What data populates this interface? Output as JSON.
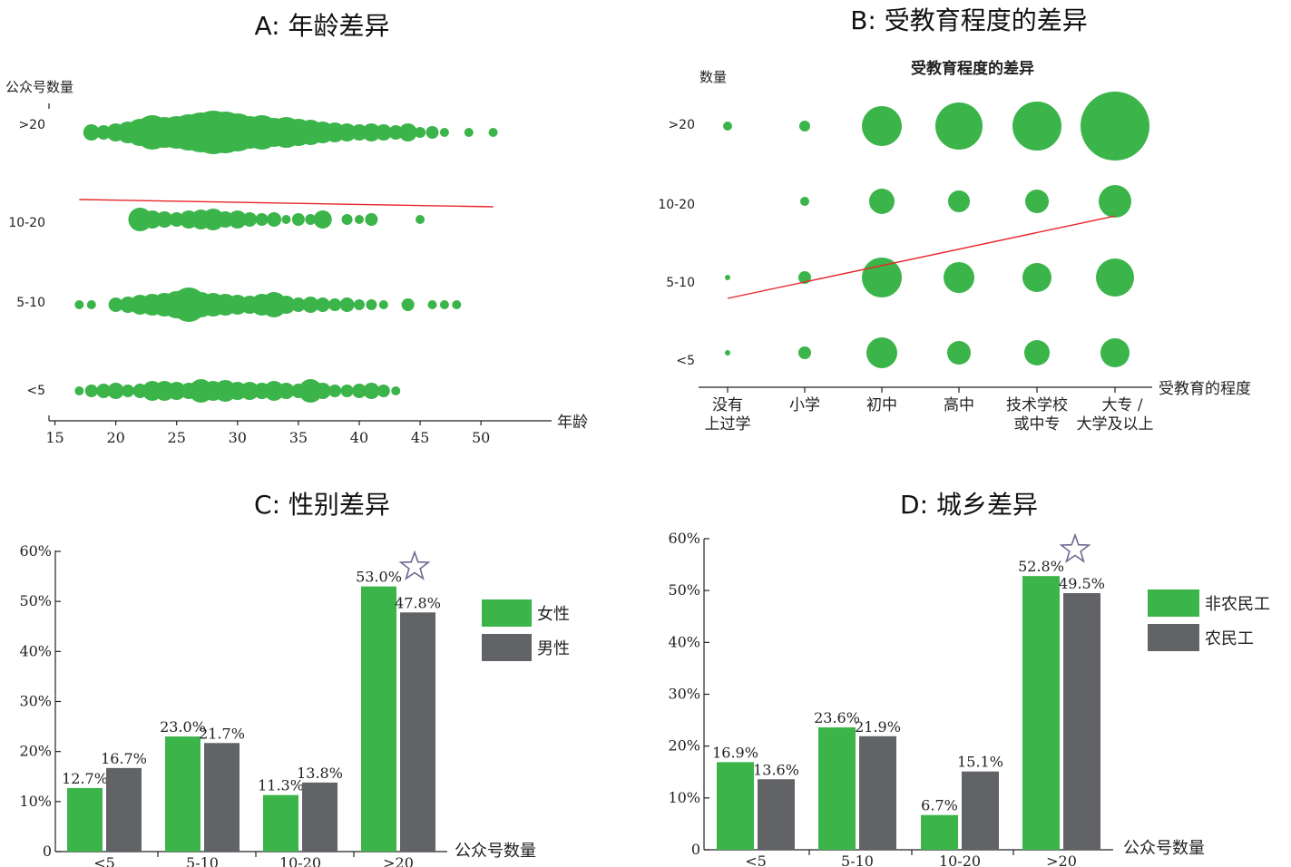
{
  "colors": {
    "green": "#3bb44a",
    "gray": "#626366",
    "trend": "#e8262b",
    "star": "#6a6a90"
  },
  "chart_data": [
    {
      "id": "A",
      "type": "scatter",
      "title": "A: 年龄差异",
      "ylabel": "公众号数量",
      "xlabel": "年龄",
      "xlim": [
        12.3,
        52
      ],
      "xticks": [
        15,
        20,
        25,
        30,
        35,
        40,
        45,
        50
      ],
      "categories": [
        ">20",
        "10-20",
        "5-10",
        "<5"
      ],
      "trend": {
        "from": [
          17,
          "10-20",
          -11
        ],
        "to": [
          51,
          "10-20",
          14
        ]
      },
      "rows": [
        {
          "category": ">20",
          "points": [
            [
              18,
              9
            ],
            [
              19,
              8
            ],
            [
              20,
              10
            ],
            [
              21,
              12
            ],
            [
              22,
              15
            ],
            [
              23,
              19
            ],
            [
              24,
              17
            ],
            [
              25,
              18
            ],
            [
              26,
              20
            ],
            [
              27,
              22
            ],
            [
              28,
              24
            ],
            [
              29,
              23
            ],
            [
              30,
              21
            ],
            [
              31,
              18
            ],
            [
              32,
              19
            ],
            [
              33,
              16
            ],
            [
              34,
              17
            ],
            [
              35,
              15
            ],
            [
              36,
              14
            ],
            [
              37,
              12
            ],
            [
              38,
              11
            ],
            [
              39,
              10
            ],
            [
              40,
              9
            ],
            [
              41,
              10
            ],
            [
              42,
              9
            ],
            [
              43,
              8
            ],
            [
              44,
              10
            ],
            [
              45,
              6
            ],
            [
              46,
              7
            ],
            [
              47,
              5
            ],
            [
              49,
              5
            ],
            [
              51,
              5
            ]
          ]
        },
        {
          "category": "10-20",
          "points": [
            [
              22,
              13
            ],
            [
              23,
              10
            ],
            [
              24,
              9
            ],
            [
              25,
              8
            ],
            [
              26,
              10
            ],
            [
              27,
              11
            ],
            [
              28,
              12
            ],
            [
              29,
              9
            ],
            [
              30,
              10
            ],
            [
              31,
              8
            ],
            [
              32,
              7
            ],
            [
              33,
              8
            ],
            [
              34,
              5
            ],
            [
              35,
              7
            ],
            [
              36,
              6
            ],
            [
              37,
              10
            ],
            [
              39,
              6
            ],
            [
              40,
              5
            ],
            [
              41,
              7
            ],
            [
              45,
              5
            ]
          ]
        },
        {
          "category": "5-10",
          "points": [
            [
              17,
              5
            ],
            [
              18,
              5
            ],
            [
              20,
              8
            ],
            [
              21,
              9
            ],
            [
              22,
              11
            ],
            [
              23,
              12
            ],
            [
              24,
              13
            ],
            [
              25,
              15
            ],
            [
              26,
              19
            ],
            [
              27,
              14
            ],
            [
              28,
              13
            ],
            [
              29,
              12
            ],
            [
              30,
              11
            ],
            [
              31,
              10
            ],
            [
              32,
              12
            ],
            [
              33,
              14
            ],
            [
              34,
              10
            ],
            [
              35,
              8
            ],
            [
              36,
              9
            ],
            [
              37,
              8
            ],
            [
              38,
              7
            ],
            [
              39,
              8
            ],
            [
              40,
              6
            ],
            [
              41,
              6
            ],
            [
              42,
              5
            ],
            [
              44,
              7
            ],
            [
              46,
              5
            ],
            [
              47,
              5
            ],
            [
              48,
              5
            ]
          ]
        },
        {
          "category": "<5",
          "points": [
            [
              17,
              5
            ],
            [
              18,
              7
            ],
            [
              19,
              8
            ],
            [
              20,
              9
            ],
            [
              21,
              7
            ],
            [
              22,
              8
            ],
            [
              23,
              11
            ],
            [
              24,
              11
            ],
            [
              25,
              10
            ],
            [
              26,
              9
            ],
            [
              27,
              13
            ],
            [
              28,
              11
            ],
            [
              29,
              12
            ],
            [
              30,
              10
            ],
            [
              31,
              10
            ],
            [
              32,
              9
            ],
            [
              33,
              11
            ],
            [
              34,
              9
            ],
            [
              35,
              8
            ],
            [
              36,
              13
            ],
            [
              37,
              9
            ],
            [
              38,
              7
            ],
            [
              39,
              7
            ],
            [
              40,
              8
            ],
            [
              41,
              9
            ],
            [
              42,
              7
            ],
            [
              43,
              5
            ]
          ]
        }
      ]
    },
    {
      "id": "B",
      "type": "scatter",
      "title": "B: 受教育程度的差异",
      "subtitle": "受教育程度的差异",
      "ylabel": "数量",
      "xlabel": "受教育的程度",
      "categories": [
        ">20",
        "10-20",
        "5-10",
        "<5"
      ],
      "xcategories": [
        [
          "没有",
          "上过学"
        ],
        [
          "小学"
        ],
        [
          "初中"
        ],
        [
          "高中"
        ],
        [
          "技术学校",
          "或中专"
        ],
        [
          "大专 /",
          "大学及以上"
        ]
      ],
      "trend": {
        "from": [
          0,
          1.72
        ],
        "to": [
          5,
          2.81
        ]
      },
      "sizes": [
        {
          "category": ">20",
          "values": [
            5,
            6,
            22,
            26,
            27,
            38
          ]
        },
        {
          "category": "10-20",
          "values": [
            0,
            5,
            14,
            12,
            13,
            18
          ]
        },
        {
          "category": "5-10",
          "values": [
            3,
            7,
            22,
            17,
            16,
            21
          ]
        },
        {
          "category": "<5",
          "values": [
            3,
            7,
            17,
            13,
            14,
            16
          ]
        }
      ]
    },
    {
      "id": "C",
      "type": "bar",
      "title": "C: 性别差异",
      "xlabel": "公众号数量",
      "categories": [
        "<5",
        "5-10",
        "10-20",
        ">20"
      ],
      "ylim": [
        0,
        60
      ],
      "yticks": [
        "0",
        "10%",
        "20%",
        "30%",
        "40%",
        "50%",
        "60%"
      ],
      "series": [
        {
          "name": "女性",
          "values": [
            12.7,
            23.0,
            11.3,
            53.0
          ],
          "labels": [
            "12.7%",
            "23.0%",
            "11.3%",
            "53.0%"
          ]
        },
        {
          "name": "男性",
          "values": [
            16.7,
            21.7,
            13.8,
            47.8
          ],
          "labels": [
            "16.7%",
            "21.7%",
            "13.8%",
            "47.8%"
          ]
        }
      ]
    },
    {
      "id": "D",
      "type": "bar",
      "title": "D: 城乡差异",
      "xlabel": "公众号数量",
      "categories": [
        "<5",
        "5-10",
        "10-20",
        ">20"
      ],
      "ylim": [
        0,
        60
      ],
      "yticks": [
        "0",
        "10%",
        "20%",
        "30%",
        "40%",
        "50%",
        "60%"
      ],
      "series": [
        {
          "name": "非农民工",
          "values": [
            16.9,
            23.6,
            6.7,
            52.8
          ],
          "labels": [
            "16.9%",
            "23.6%",
            "6.7%",
            "52.8%"
          ]
        },
        {
          "name": "农民工",
          "values": [
            13.6,
            21.9,
            15.1,
            49.5
          ],
          "labels": [
            "13.6%",
            "21.9%",
            "15.1%",
            "49.5%"
          ]
        }
      ]
    }
  ]
}
